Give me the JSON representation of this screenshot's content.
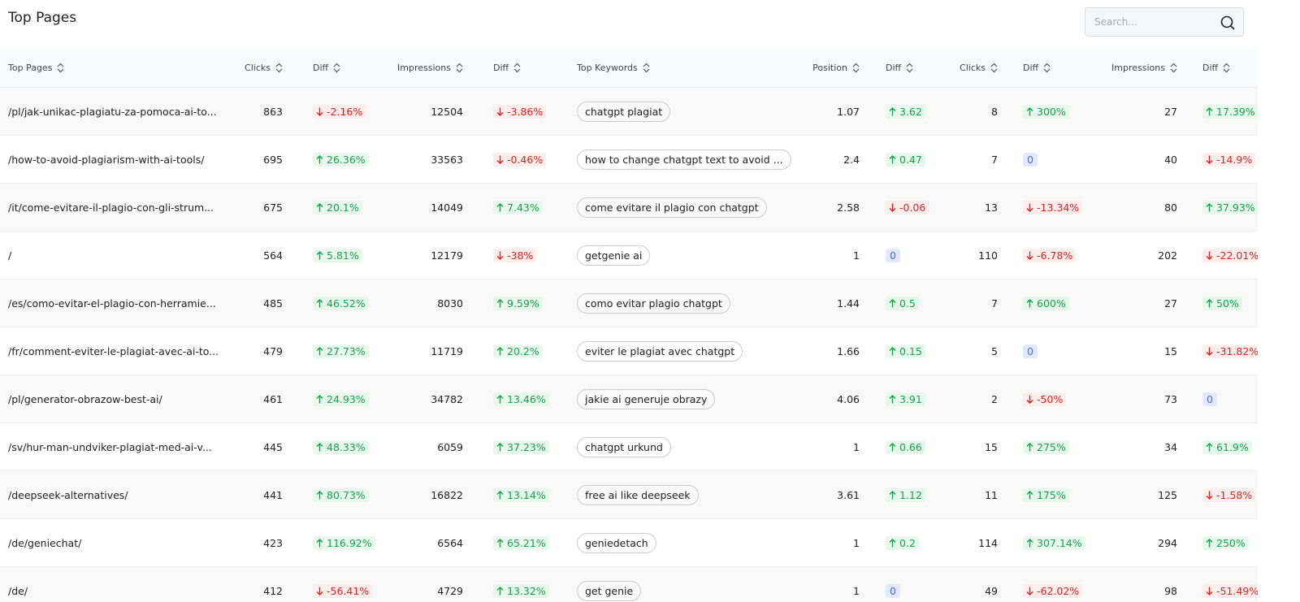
{
  "header": {
    "title": "Top Pages",
    "search_placeholder": "Search..."
  },
  "table": {
    "columns": [
      "Top Pages",
      "Clicks",
      "Diff",
      "Impressions",
      "Diff",
      "Top Keywords",
      "Position",
      "Diff",
      "Clicks",
      "Diff",
      "Impressions",
      "Diff"
    ],
    "rows": [
      [
        "/pl/jak-unikac-plagiatu-za-pomoca-ai-to...",
        863,
        "-2.16%",
        12504,
        "-3.86%",
        "chatgpt plagiat",
        1.07,
        "3.62",
        8,
        "300%",
        27,
        "17.39%"
      ],
      [
        "/how-to-avoid-plagiarism-with-ai-tools/",
        695,
        "26.36%",
        33563,
        "-0.46%",
        "how to change chatgpt text to avoid ...",
        2.4,
        "0.47",
        7,
        "0",
        40,
        "-14.9%"
      ],
      [
        "/it/come-evitare-il-plagio-con-gli-strum...",
        675,
        "20.1%",
        14049,
        "7.43%",
        "come evitare il plagio con chatgpt",
        2.58,
        "-0.06",
        13,
        "-13.34%",
        80,
        "37.93%"
      ],
      [
        "/",
        564,
        "5.81%",
        12179,
        "-38%",
        "getgenie ai",
        1,
        "0",
        110,
        "-6.78%",
        202,
        "-22.01%"
      ],
      [
        "/es/como-evitar-el-plagio-con-herramie...",
        485,
        "46.52%",
        8030,
        "9.59%",
        "como evitar plagio chatgpt",
        1.44,
        "0.5",
        7,
        "600%",
        27,
        "50%"
      ],
      [
        "/fr/comment-eviter-le-plagiat-avec-ai-to...",
        479,
        "27.73%",
        11719,
        "20.2%",
        "eviter le plagiat avec chatgpt",
        1.66,
        "0.15",
        5,
        "0",
        15,
        "-31.82%"
      ],
      [
        "/pl/generator-obrazow-best-ai/",
        461,
        "24.93%",
        34782,
        "13.46%",
        "jakie ai generuje obrazy",
        4.06,
        "3.91",
        2,
        "-50%",
        73,
        "0"
      ],
      [
        "/sv/hur-man-undviker-plagiat-med-ai-v...",
        445,
        "48.33%",
        6059,
        "37.23%",
        "chatgpt urkund",
        1,
        "0.66",
        15,
        "275%",
        34,
        "61.9%"
      ],
      [
        "/deepseek-alternatives/",
        441,
        "80.73%",
        16822,
        "13.14%",
        "free ai like deepseek",
        3.61,
        "1.12",
        11,
        "175%",
        125,
        "-1.58%"
      ],
      [
        "/de/geniechat/",
        423,
        "116.92%",
        6564,
        "65.21%",
        "geniedetach",
        1,
        "0.2",
        114,
        "307.14%",
        294,
        "250%"
      ],
      [
        "/de/",
        412,
        "-56.41%",
        4729,
        "13.32%",
        "get genie",
        1,
        "0",
        49,
        "-62.02%",
        98,
        "-51.49%"
      ]
    ]
  }
}
